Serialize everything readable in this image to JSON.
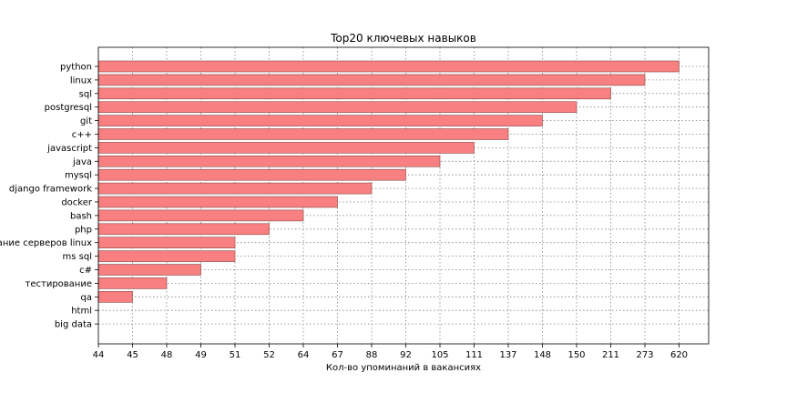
{
  "chart_data": {
    "type": "bar",
    "orientation": "horizontal",
    "title": "Top20 ключевых навыков",
    "xlabel": "Кол-во упоминаний в вакансиях",
    "ylabel": "",
    "categories": [
      "python",
      "linux",
      "sql",
      "postgresql",
      "git",
      "c++",
      "javascript",
      "java",
      "mysql",
      "django framework",
      "docker",
      "bash",
      "php",
      "администрирование серверов linux",
      "ms sql",
      "c#",
      "тестирование",
      "qa",
      "html",
      "big data"
    ],
    "x_tick_labels": [
      "44",
      "45",
      "48",
      "49",
      "51",
      "52",
      "64",
      "67",
      "88",
      "92",
      "105",
      "111",
      "137",
      "148",
      "150",
      "211",
      "273",
      "620"
    ],
    "values": [
      620,
      273,
      211,
      150,
      148,
      137,
      111,
      105,
      92,
      88,
      67,
      64,
      52,
      51,
      51,
      49,
      48,
      45,
      44,
      44
    ],
    "bar_color": "#f88080",
    "grid": true
  }
}
